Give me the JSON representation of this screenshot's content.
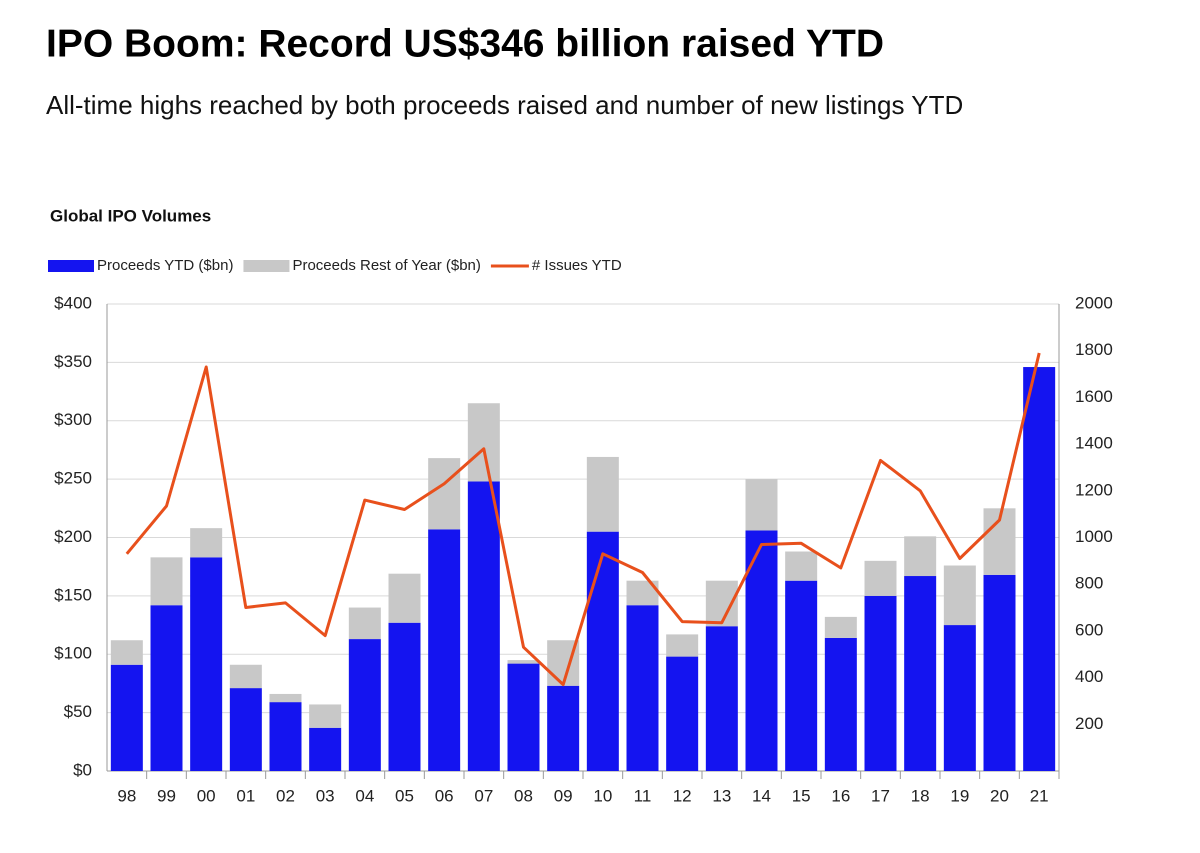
{
  "header": {
    "title": "IPO Boom: Record US$346 billion raised YTD",
    "subtitle": "All-time highs reached by both proceeds raised and number of new listings YTD"
  },
  "chart_data": {
    "type": "bar",
    "stacked": true,
    "title": "Global IPO Volumes",
    "categories": [
      "98",
      "99",
      "00",
      "01",
      "02",
      "03",
      "04",
      "05",
      "06",
      "07",
      "08",
      "09",
      "10",
      "11",
      "12",
      "13",
      "14",
      "15",
      "16",
      "17",
      "18",
      "19",
      "20",
      "21"
    ],
    "series": [
      {
        "name": "Proceeds YTD ($bn)",
        "color": "#1414f0",
        "values": [
          91,
          142,
          183,
          71,
          59,
          37,
          113,
          127,
          207,
          248,
          92,
          73,
          205,
          142,
          98,
          124,
          206,
          163,
          114,
          150,
          167,
          125,
          168,
          346
        ]
      },
      {
        "name": "Proceeds Rest of Year ($bn)",
        "color": "#c8c8c8",
        "values": [
          21,
          41,
          25,
          20,
          7,
          20,
          27,
          42,
          61,
          67,
          3,
          39,
          64,
          21,
          19,
          39,
          44,
          25,
          18,
          30,
          34,
          51,
          57,
          null
        ]
      },
      {
        "name": "# Issues YTD",
        "color": "#e8501c",
        "type": "line",
        "axis": "y2",
        "values": [
          930,
          1135,
          1730,
          700,
          720,
          580,
          1160,
          1120,
          1230,
          1380,
          530,
          370,
          930,
          850,
          640,
          635,
          970,
          975,
          870,
          1330,
          1200,
          910,
          1075,
          1790
        ]
      }
    ],
    "ylim": [
      0,
      400
    ],
    "yticks": [
      {
        "value": 0,
        "label": "$0"
      },
      {
        "value": 50,
        "label": "$50"
      },
      {
        "value": 100,
        "label": "$100"
      },
      {
        "value": 150,
        "label": "$150"
      },
      {
        "value": 200,
        "label": "$200"
      },
      {
        "value": 250,
        "label": "$250"
      },
      {
        "value": 300,
        "label": "$300"
      },
      {
        "value": 350,
        "label": "$350"
      },
      {
        "value": 400,
        "label": "$400"
      }
    ],
    "y2lim": [
      0,
      2000
    ],
    "y2ticks": [
      200,
      400,
      600,
      800,
      1000,
      1200,
      1400,
      1600,
      1800,
      2000
    ],
    "grid": true
  }
}
